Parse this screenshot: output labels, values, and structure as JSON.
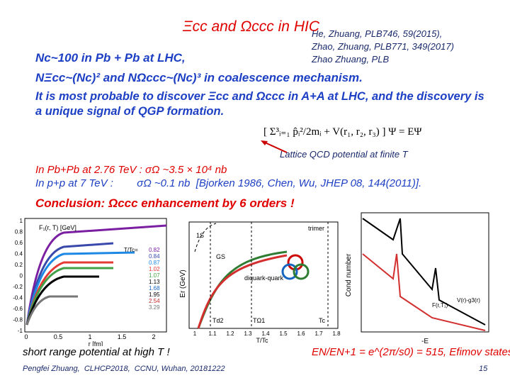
{
  "slide": {
    "title": "Ξcc and Ωccc in HIC",
    "references": [
      "He, Zhuang, PLB746, 59(2015),",
      "Zhao, Zhuang, PLB771, 349(2017)",
      "Zhao Zhuang, PLB"
    ],
    "lines": [
      "Nc~100  in Pb + Pb at LHC,",
      "NΞcc~(Nc)² and NΩccc~(Nc)³  in coalescence mechanism.",
      "It is most probable to discover Ξcc and Ωccc in A+A at LHC, and the discovery is",
      "a unique signal of QGP formation."
    ],
    "equation": "[ Σ³ᵢ₌₁ p̂ᵢ²/2mᵢ + V(r₁, r₂, r₃) ] Ψ = EΨ",
    "annotation": "Lattice QCD potential at finite T",
    "pbpb": "In Pb+Pb at 2.76 TeV :  σΩ ~3.5 × 10⁴ nb",
    "pp": "In p+p at 7 TeV :        σΩ ~0.1 nb  [Bjorken 1986, Chen, Wu, JHEP 08, 144(2011)].",
    "conclusion": "Conclusion: Ωccc enhancement by 6 orders !",
    "left_plot": {
      "ylabel": "F₁(r, T) [GeV]",
      "xlabel": "r [fm]",
      "yticks": [
        "1",
        "0.8",
        "0.6",
        "0.4",
        "0.2",
        "0",
        "-0.2",
        "-0.4",
        "-0.6",
        "-0.8",
        "-1"
      ],
      "xticks": [
        "0",
        "0.5",
        "1",
        "1.5",
        "2"
      ],
      "legend_title": "T/Tc=",
      "legend": [
        "0.82",
        "0.84",
        "0.87",
        "1.02",
        "1.07",
        "1.13",
        "1.68",
        "1.95",
        "2.54",
        "3.29"
      ]
    },
    "middle_plot": {
      "ylabel": "Er (GeV)",
      "xlabel": "T/Tc",
      "labels": [
        "1S",
        "GS",
        "trimer",
        "diquark-quark",
        "Td2",
        "TΩ1",
        "Tc"
      ],
      "xticks": [
        "1",
        "1.1",
        "1.2",
        "1.3",
        "1.4",
        "1.5",
        "1.6",
        "1.7",
        "1.8"
      ]
    },
    "right_plot": {
      "ylabel": "Cond number",
      "xlabel": "-E",
      "labels": [
        "F(r,T₁)",
        "V(r)-g3(r)"
      ]
    },
    "caption": "short range potential at high T !",
    "formula": "EN/EN+1 = e^(2π/s0) = 515, Efimov states !",
    "footer": "Pengfei Zhuang,  CLHCP2018,  CCNU, Wuhan, 20181222",
    "page": "15"
  }
}
